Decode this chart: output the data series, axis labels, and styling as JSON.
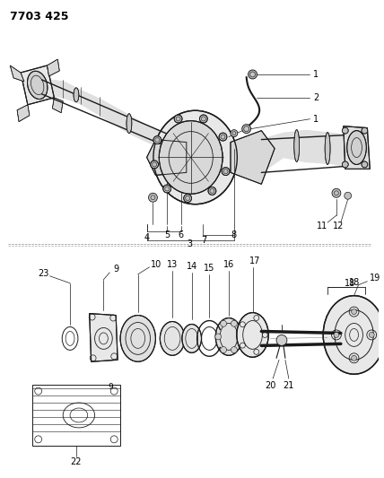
{
  "bg_color": "#ffffff",
  "line_color": "#1a1a1a",
  "title": "7703 425",
  "title_fontsize": 9,
  "label_fontsize": 7,
  "figsize": [
    4.28,
    5.33
  ],
  "dpi": 100,
  "top_section": {
    "ymin": 0.02,
    "ymax": 0.52
  },
  "bottom_section": {
    "ymin": 0.52,
    "ymax": 0.98
  }
}
